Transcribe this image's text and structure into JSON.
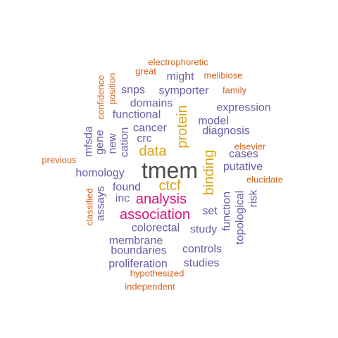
{
  "colors": {
    "dark": "#4d4d4d",
    "magenta": "#d6147c",
    "gold": "#d8a214",
    "purple": "#6a5ea6",
    "orange": "#d2621c"
  },
  "words": [
    {
      "text": "tmem",
      "color": "dark"
    },
    {
      "text": "association",
      "color": "magenta"
    },
    {
      "text": "analysis",
      "color": "magenta"
    },
    {
      "text": "data",
      "color": "gold"
    },
    {
      "text": "ctcf",
      "color": "gold"
    },
    {
      "text": "protein",
      "color": "gold"
    },
    {
      "text": "binding",
      "color": "gold"
    },
    {
      "text": "electrophoretic",
      "color": "orange"
    },
    {
      "text": "great",
      "color": "orange"
    },
    {
      "text": "melibiose",
      "color": "orange"
    },
    {
      "text": "family",
      "color": "orange"
    },
    {
      "text": "confidence",
      "color": "orange"
    },
    {
      "text": "position",
      "color": "orange"
    },
    {
      "text": "previous",
      "color": "orange"
    },
    {
      "text": "elsevier",
      "color": "orange"
    },
    {
      "text": "elucidate",
      "color": "orange"
    },
    {
      "text": "classified",
      "color": "orange"
    },
    {
      "text": "hypothesized",
      "color": "orange"
    },
    {
      "text": "independent",
      "color": "orange"
    },
    {
      "text": "might",
      "color": "purple"
    },
    {
      "text": "snps",
      "color": "purple"
    },
    {
      "text": "symporter",
      "color": "purple"
    },
    {
      "text": "domains",
      "color": "purple"
    },
    {
      "text": "expression",
      "color": "purple"
    },
    {
      "text": "functional",
      "color": "purple"
    },
    {
      "text": "model",
      "color": "purple"
    },
    {
      "text": "cancer",
      "color": "purple"
    },
    {
      "text": "diagnosis",
      "color": "purple"
    },
    {
      "text": "crc",
      "color": "purple"
    },
    {
      "text": "mfsda",
      "color": "purple"
    },
    {
      "text": "gene",
      "color": "purple"
    },
    {
      "text": "new",
      "color": "purple"
    },
    {
      "text": "cation",
      "color": "purple"
    },
    {
      "text": "cases",
      "color": "purple"
    },
    {
      "text": "putative",
      "color": "purple"
    },
    {
      "text": "homology",
      "color": "purple"
    },
    {
      "text": "found",
      "color": "purple"
    },
    {
      "text": "inc",
      "color": "purple"
    },
    {
      "text": "assays",
      "color": "purple"
    },
    {
      "text": "risk",
      "color": "purple"
    },
    {
      "text": "topological",
      "color": "purple"
    },
    {
      "text": "function",
      "color": "purple"
    },
    {
      "text": "set",
      "color": "purple"
    },
    {
      "text": "colorectal",
      "color": "purple"
    },
    {
      "text": "study",
      "color": "purple"
    },
    {
      "text": "membrane",
      "color": "purple"
    },
    {
      "text": "boundaries",
      "color": "purple"
    },
    {
      "text": "controls",
      "color": "purple"
    },
    {
      "text": "proliferation",
      "color": "purple"
    },
    {
      "text": "studies",
      "color": "purple"
    }
  ]
}
